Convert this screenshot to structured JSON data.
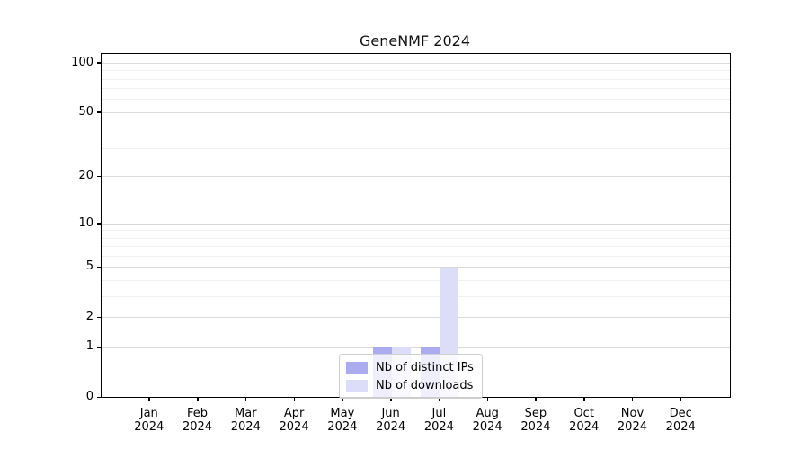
{
  "chart_data": {
    "type": "bar",
    "title": "GeneNMF 2024",
    "x_categories": [
      "Jan",
      "Feb",
      "Mar",
      "Apr",
      "May",
      "Jun",
      "Jul",
      "Aug",
      "Sep",
      "Oct",
      "Nov",
      "Dec"
    ],
    "x_year": "2024",
    "series": [
      {
        "name": "Nb of distinct IPs",
        "color": "#a9acf0",
        "values": [
          0,
          0,
          0,
          0,
          0,
          1,
          1,
          0,
          0,
          0,
          0,
          0
        ]
      },
      {
        "name": "Nb of downloads",
        "color": "#dbddf9",
        "values": [
          0,
          0,
          0,
          0,
          0,
          1,
          5,
          0,
          0,
          0,
          0,
          0
        ]
      }
    ],
    "y_axis": {
      "scale": "log1p",
      "ticks": [
        0,
        1,
        2,
        5,
        10,
        20,
        50,
        100
      ],
      "minor_ticks": [
        3,
        4,
        6,
        7,
        8,
        9,
        30,
        40,
        60,
        70,
        80,
        90
      ],
      "ylim": [
        0,
        113
      ]
    },
    "xlabel": "",
    "ylabel": "",
    "grid": {
      "major_color": "#d9d9d9",
      "minor_color": "#ededed",
      "on": true
    },
    "legend": {
      "position": "lower center"
    }
  }
}
